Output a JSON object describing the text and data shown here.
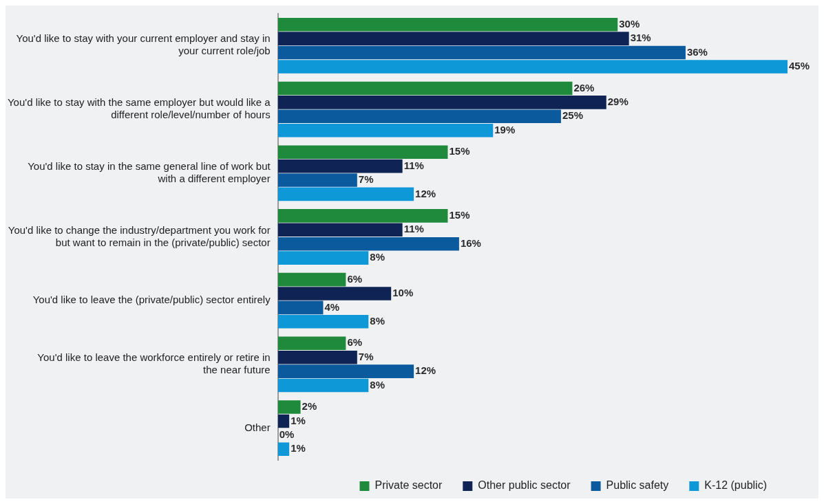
{
  "chart_data": {
    "type": "bar",
    "orientation": "horizontal",
    "legend": "bottom right",
    "categories": [
      "You'd like to stay with your current employer and stay in your current role/job",
      "You'd like to stay with the same employer but would like a different role/level/number of hours",
      "You'd like to stay in the same general line of work but with a different employer",
      "You'd like to change the industry/department you work for but want to remain in the (private/public) sector",
      "You'd like to leave the (private/public) sector entirely",
      "You'd like to leave the workforce entirely or retire in the near future",
      "Other"
    ],
    "series": [
      {
        "name": "Private sector",
        "color": "#1f8a3b",
        "values": [
          30,
          26,
          15,
          15,
          6,
          6,
          2
        ],
        "value_labels": [
          "30%",
          "26%",
          "15%",
          "15%",
          "6%",
          "6%",
          "2%"
        ]
      },
      {
        "name": "Other public sector",
        "color": "#0f2454",
        "values": [
          31,
          29,
          11,
          11,
          10,
          7,
          1
        ],
        "value_labels": [
          "31%",
          "29%",
          "11%",
          "11%",
          "10%",
          "7%",
          "1%"
        ]
      },
      {
        "name": "Public safety",
        "color": "#0c5a9e",
        "values": [
          36,
          25,
          7,
          16,
          4,
          12,
          0
        ],
        "value_labels": [
          "36%",
          "25%",
          "7%",
          "16%",
          "4%",
          "12%",
          "0%"
        ]
      },
      {
        "name": "K-12 (public)",
        "color": "#0f98d7",
        "values": [
          45,
          19,
          12,
          8,
          8,
          8,
          1
        ],
        "value_labels": [
          "45%",
          "19%",
          "12%",
          "8%",
          "8%",
          "8%",
          "1%"
        ]
      }
    ]
  }
}
